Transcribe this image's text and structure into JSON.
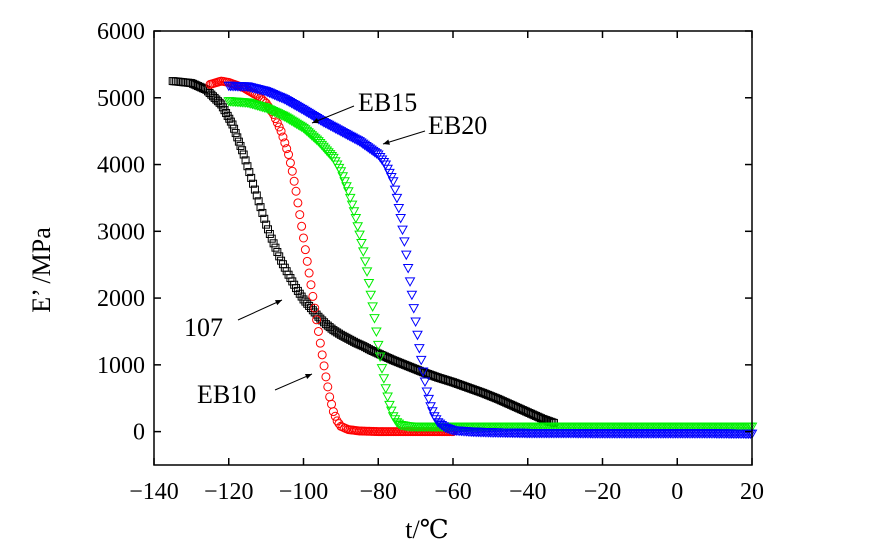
{
  "chart_data": {
    "type": "scatter",
    "title": "",
    "xlabel": "t/℃",
    "ylabel": "E’ /MPa",
    "xlim": [
      -140,
      20
    ],
    "ylim": [
      -500,
      6000
    ],
    "xticks": [
      -140,
      -120,
      -100,
      -80,
      -60,
      -40,
      -20,
      0,
      20
    ],
    "yticks": [
      0,
      1000,
      2000,
      3000,
      4000,
      5000,
      6000
    ],
    "legend": "none",
    "series": [
      {
        "name": "107",
        "color": "#000000",
        "marker": "square",
        "x": [
          -135,
          -130,
          -126,
          -122,
          -119,
          -116,
          -114,
          -112,
          -110,
          -108,
          -106,
          -104,
          -102,
          -100,
          -98,
          -96,
          -94,
          -92,
          -90,
          -88,
          -86,
          -84,
          -82,
          -80,
          -76,
          -72,
          -68,
          -64,
          -60,
          -56,
          -52,
          -48,
          -44,
          -40,
          -36,
          -33
        ],
        "y": [
          5250,
          5220,
          5120,
          4900,
          4600,
          4150,
          3800,
          3450,
          3100,
          2820,
          2560,
          2350,
          2150,
          1980,
          1850,
          1720,
          1610,
          1520,
          1450,
          1390,
          1330,
          1280,
          1220,
          1170,
          1070,
          980,
          890,
          810,
          740,
          660,
          580,
          490,
          390,
          290,
          190,
          130
        ]
      },
      {
        "name": "EB10",
        "color": "#ff0000",
        "marker": "circle",
        "x": [
          -125,
          -122,
          -120,
          -116,
          -112,
          -110,
          -108,
          -106,
          -104,
          -103,
          -102,
          -101,
          -100,
          -99,
          -98,
          -97,
          -96,
          -95,
          -94,
          -93,
          -92,
          -91,
          -90,
          -88,
          -85,
          -80,
          -75,
          -70,
          -65,
          -60
        ],
        "y": [
          5200,
          5250,
          5230,
          5150,
          5020,
          4920,
          4750,
          4500,
          4150,
          3900,
          3600,
          3250,
          2900,
          2550,
          2200,
          1850,
          1500,
          1150,
          820,
          520,
          300,
          160,
          80,
          30,
          10,
          0,
          0,
          0,
          0,
          0
        ]
      },
      {
        "name": "EB15",
        "color": "#00ee00",
        "marker": "triangle-down",
        "x": [
          -120,
          -115,
          -110,
          -105,
          -100,
          -96,
          -92,
          -90,
          -88,
          -86,
          -84,
          -83,
          -82,
          -81,
          -80,
          -79,
          -78,
          -77,
          -76,
          -75,
          -74,
          -72,
          -70,
          -65,
          -60,
          -50,
          -40,
          -30,
          -20,
          -10,
          0,
          10,
          20
        ],
        "y": [
          4950,
          4930,
          4850,
          4720,
          4550,
          4350,
          4100,
          3900,
          3600,
          3200,
          2700,
          2400,
          2050,
          1700,
          1300,
          950,
          650,
          400,
          230,
          140,
          100,
          80,
          75,
          75,
          75,
          75,
          75,
          75,
          75,
          75,
          75,
          75,
          75
        ]
      },
      {
        "name": "EB20",
        "color": "#0000ff",
        "marker": "triangle-down",
        "x": [
          -120,
          -115,
          -110,
          -105,
          -100,
          -95,
          -90,
          -85,
          -80,
          -78,
          -76,
          -75,
          -74,
          -73,
          -72,
          -71,
          -70,
          -69,
          -68,
          -67,
          -66,
          -65,
          -64,
          -62,
          -60,
          -55,
          -50,
          -40,
          -30,
          -20,
          -10,
          0,
          10,
          20
        ],
        "y": [
          5180,
          5170,
          5100,
          4980,
          4820,
          4650,
          4500,
          4350,
          4150,
          4000,
          3750,
          3500,
          3200,
          2850,
          2450,
          2050,
          1650,
          1250,
          900,
          600,
          380,
          230,
          140,
          60,
          20,
          0,
          -10,
          -20,
          -20,
          -25,
          -25,
          -25,
          -25,
          -30
        ]
      }
    ],
    "annotations": [
      {
        "text": "EB15",
        "series": "EB15"
      },
      {
        "text": "EB20",
        "series": "EB20"
      },
      {
        "text": "107",
        "series": "107"
      },
      {
        "text": "EB10",
        "series": "EB10"
      }
    ]
  }
}
